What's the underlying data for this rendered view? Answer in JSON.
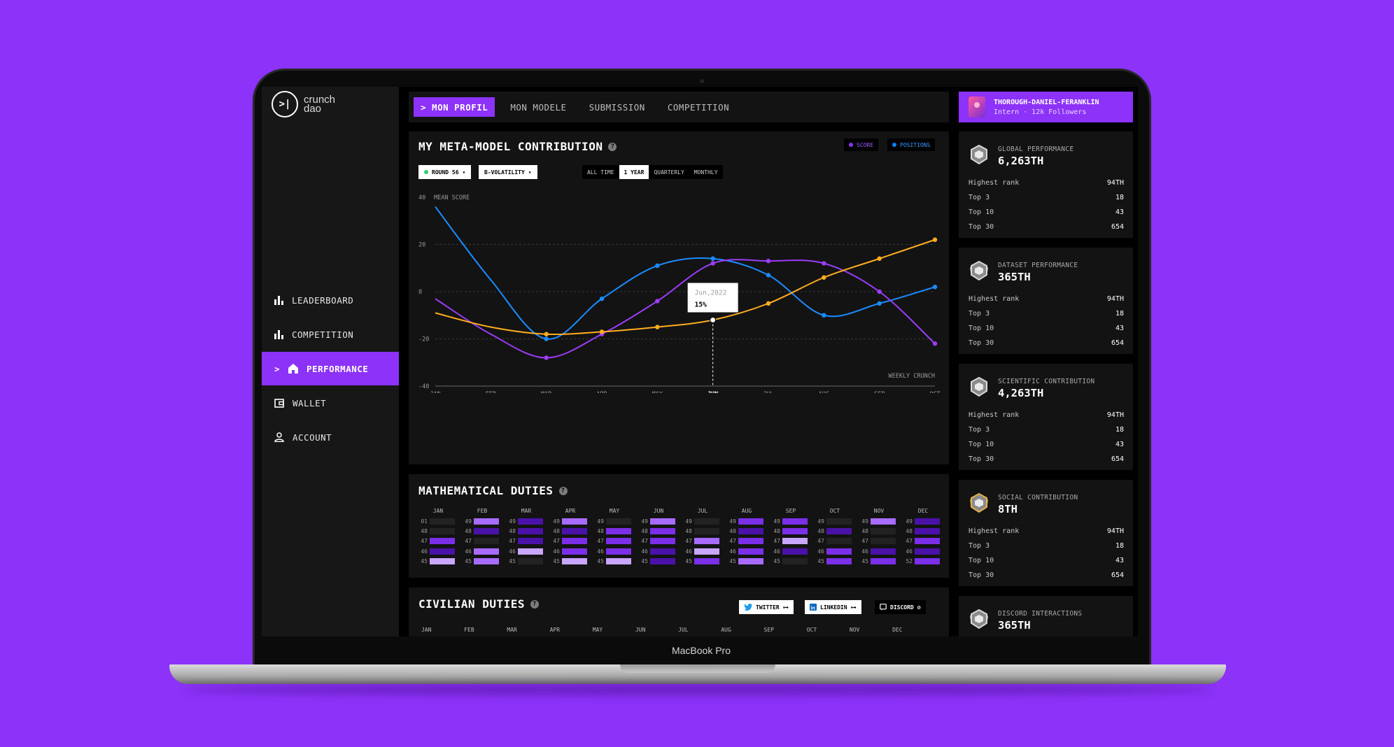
{
  "device_label": "MacBook Pro",
  "sidebar": {
    "logo_mark": ">|",
    "logo_line1": "crunch",
    "logo_line2": "dao",
    "items": [
      {
        "label": "LEADERBOARD",
        "icon": "bar-chart-icon"
      },
      {
        "label": "COMPETITION",
        "icon": "bar-chart-icon"
      },
      {
        "label": "PERFORMANCE",
        "icon": "home-icon",
        "prefix": ">",
        "active": true
      },
      {
        "label": "WALLET",
        "icon": "wallet-icon"
      },
      {
        "label": "ACCOUNT",
        "icon": "user-icon"
      }
    ]
  },
  "tabs": [
    "> MON PROFIL",
    "MON MODELE",
    "SUBMISSION",
    "COMPETITION"
  ],
  "profile": {
    "name": "THOROUGH-DANIEL-FERANKLIN",
    "subtitle": "Intern · 12k Followers"
  },
  "contribution": {
    "title": "MY META-MODEL CONTRIBUTION",
    "legend": [
      {
        "label": "SCORE",
        "color": "#8c32f9"
      },
      {
        "label": "POSITIONS",
        "color": "#0a84ff"
      }
    ],
    "round": "ROUND 56",
    "volatility": "B-VOLATILITY",
    "ranges": [
      "ALL TIME",
      "1 YEAR",
      "QUARTERLY",
      "MONTHLY"
    ],
    "active_range": "1 YEAR"
  },
  "chart_data": {
    "type": "line",
    "ylabel": "MEAN SCORE",
    "xlabel": "WEEKLY CRUNCH",
    "x": [
      "JAN",
      "FEB",
      "MAR",
      "APR",
      "MAY",
      "JUN",
      "JUL",
      "AUG",
      "SEP",
      "OCT"
    ],
    "highlight_x": "JUN",
    "ylim": [
      -40,
      40
    ],
    "yticks": [
      40,
      20,
      0,
      -20,
      -40
    ],
    "grid": "dashed horizontal",
    "series": [
      {
        "color": "#1a8cff",
        "values": [
          36,
          5,
          -20,
          -3,
          11,
          14,
          7,
          -10,
          -5,
          2
        ]
      },
      {
        "color": "#9b3cf7",
        "values": [
          -3,
          -18,
          -28,
          -18,
          -4,
          12,
          13,
          12,
          0,
          -22
        ]
      },
      {
        "color": "#ffad1f",
        "values": [
          -9,
          -15,
          -18,
          -17,
          -15,
          -12,
          -5,
          6,
          14,
          22
        ]
      }
    ],
    "tooltip": {
      "date": "Jun,2022",
      "value": "15%"
    }
  },
  "math": {
    "title": "MATHEMATICAL DUTIES",
    "months": [
      {
        "label": "JAN",
        "rows": [
          "01",
          "48",
          "47",
          "46",
          "45"
        ],
        "levels": [
          0,
          0,
          3,
          4,
          1
        ]
      },
      {
        "label": "FEB",
        "rows": [
          "49",
          "48",
          "47",
          "46",
          "45"
        ],
        "levels": [
          2,
          4,
          0,
          2,
          2
        ]
      },
      {
        "label": "MAR",
        "rows": [
          "49",
          "48",
          "47",
          "46",
          "45"
        ],
        "levels": [
          4,
          4,
          4,
          1,
          0
        ]
      },
      {
        "label": "APR",
        "rows": [
          "49",
          "48",
          "47",
          "46",
          "45"
        ],
        "levels": [
          2,
          4,
          3,
          3,
          1
        ]
      },
      {
        "label": "MAY",
        "rows": [
          "49",
          "48",
          "47",
          "46",
          "45"
        ],
        "levels": [
          0,
          3,
          3,
          3,
          1
        ]
      },
      {
        "label": "JUN",
        "rows": [
          "49",
          "48",
          "47",
          "46",
          "45"
        ],
        "levels": [
          2,
          3,
          3,
          4,
          4
        ]
      },
      {
        "label": "JUL",
        "rows": [
          "49",
          "48",
          "47",
          "46",
          "45"
        ],
        "levels": [
          0,
          0,
          2,
          1,
          3
        ]
      },
      {
        "label": "AUG",
        "rows": [
          "49",
          "48",
          "47",
          "46",
          "45"
        ],
        "levels": [
          3,
          4,
          3,
          3,
          2
        ]
      },
      {
        "label": "SEP",
        "rows": [
          "49",
          "48",
          "47",
          "46",
          "45"
        ],
        "levels": [
          3,
          3,
          1,
          4,
          0
        ]
      },
      {
        "label": "OCT",
        "rows": [
          "49",
          "48",
          "47",
          "46",
          "45"
        ],
        "levels": [
          0,
          4,
          0,
          3,
          3
        ]
      },
      {
        "label": "NOV",
        "rows": [
          "49",
          "48",
          "47",
          "46",
          "45"
        ],
        "levels": [
          2,
          0,
          0,
          4,
          3
        ]
      },
      {
        "label": "DEC",
        "rows": [
          "49",
          "48",
          "47",
          "46",
          "52"
        ],
        "levels": [
          4,
          4,
          3,
          4,
          3
        ]
      }
    ],
    "palette": [
      "#222222",
      "#c9a6ff",
      "#a86bff",
      "#7b2fe8",
      "#4a12a8"
    ]
  },
  "civil": {
    "title": "CIVILIAN DUTIES",
    "links": [
      {
        "label": "TWITTER",
        "icon": "twitter-icon"
      },
      {
        "label": "LINKEDIN",
        "icon": "linkedin-icon"
      },
      {
        "label": "DISCORD",
        "icon": "discord-icon"
      }
    ],
    "months": [
      "JAN",
      "FEB",
      "MAR",
      "APR",
      "MAY",
      "JUN",
      "JUL",
      "AUG",
      "SEP",
      "OCT",
      "NOV",
      "DEC"
    ]
  },
  "cards": [
    {
      "title": "GLOBAL PERFORMANCE",
      "value": "6,263TH",
      "badge": "silver-badge-icon",
      "rows": [
        [
          "Highest rank",
          "94TH"
        ],
        [
          "Top 3",
          "18"
        ],
        [
          "Top 10",
          "43"
        ],
        [
          "Top 30",
          "654"
        ]
      ]
    },
    {
      "title": "DATASET PERFORMANCE",
      "value": "365TH",
      "badge": "winged-badge-icon",
      "rows": [
        [
          "Highest rank",
          "94TH"
        ],
        [
          "Top 3",
          "18"
        ],
        [
          "Top 10",
          "43"
        ],
        [
          "Top 30",
          "654"
        ]
      ]
    },
    {
      "title": "SCIENTIFIC CONTRIBUTION",
      "value": "4,263TH",
      "badge": "silver-badge-icon",
      "rows": [
        [
          "Highest rank",
          "94TH"
        ],
        [
          "Top 3",
          "18"
        ],
        [
          "Top 10",
          "43"
        ],
        [
          "Top 30",
          "654"
        ]
      ]
    },
    {
      "title": "SOCIAL CONTRIBUTION",
      "value": "8TH",
      "badge": "gold-winged-badge-icon",
      "rows": [
        [
          "Highest rank",
          "94TH"
        ],
        [
          "Top 3",
          "18"
        ],
        [
          "Top 10",
          "43"
        ],
        [
          "Top 30",
          "654"
        ]
      ]
    },
    {
      "title": "DISCORD INTERACTIONS",
      "value": "365TH",
      "badge": "winged-badge-icon",
      "rows": []
    }
  ]
}
